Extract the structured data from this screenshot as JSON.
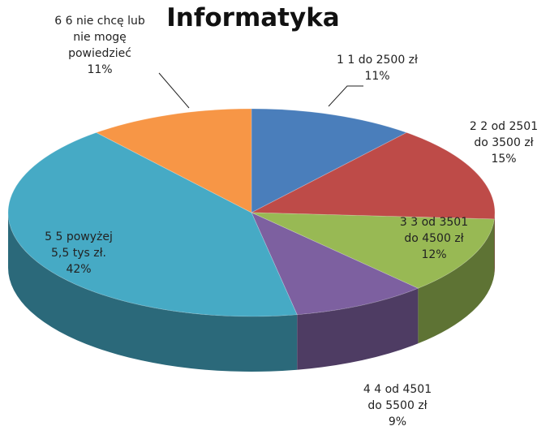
{
  "chart_data": {
    "type": "pie",
    "title": "Informatyka",
    "categories": [
      "1 1 do 2500 zł",
      "2 2 od 2501 do 3500 zł",
      "3 3 od 3501 do 4500 zł",
      "4 4 od 4501 do 5500 zł",
      "5 5 powyżej 5,5 tys zł.",
      "6 6 nie chcę lub nie mogę powiedzieć"
    ],
    "values": [
      11,
      15,
      12,
      9,
      42,
      11
    ],
    "value_labels": [
      "11%",
      "15%",
      "12%",
      "9%",
      "42%",
      "11%"
    ],
    "colors": [
      "#4a7ebb",
      "#be4b48",
      "#98b954",
      "#7d60a0",
      "#46aac5",
      "#f79646"
    ]
  }
}
